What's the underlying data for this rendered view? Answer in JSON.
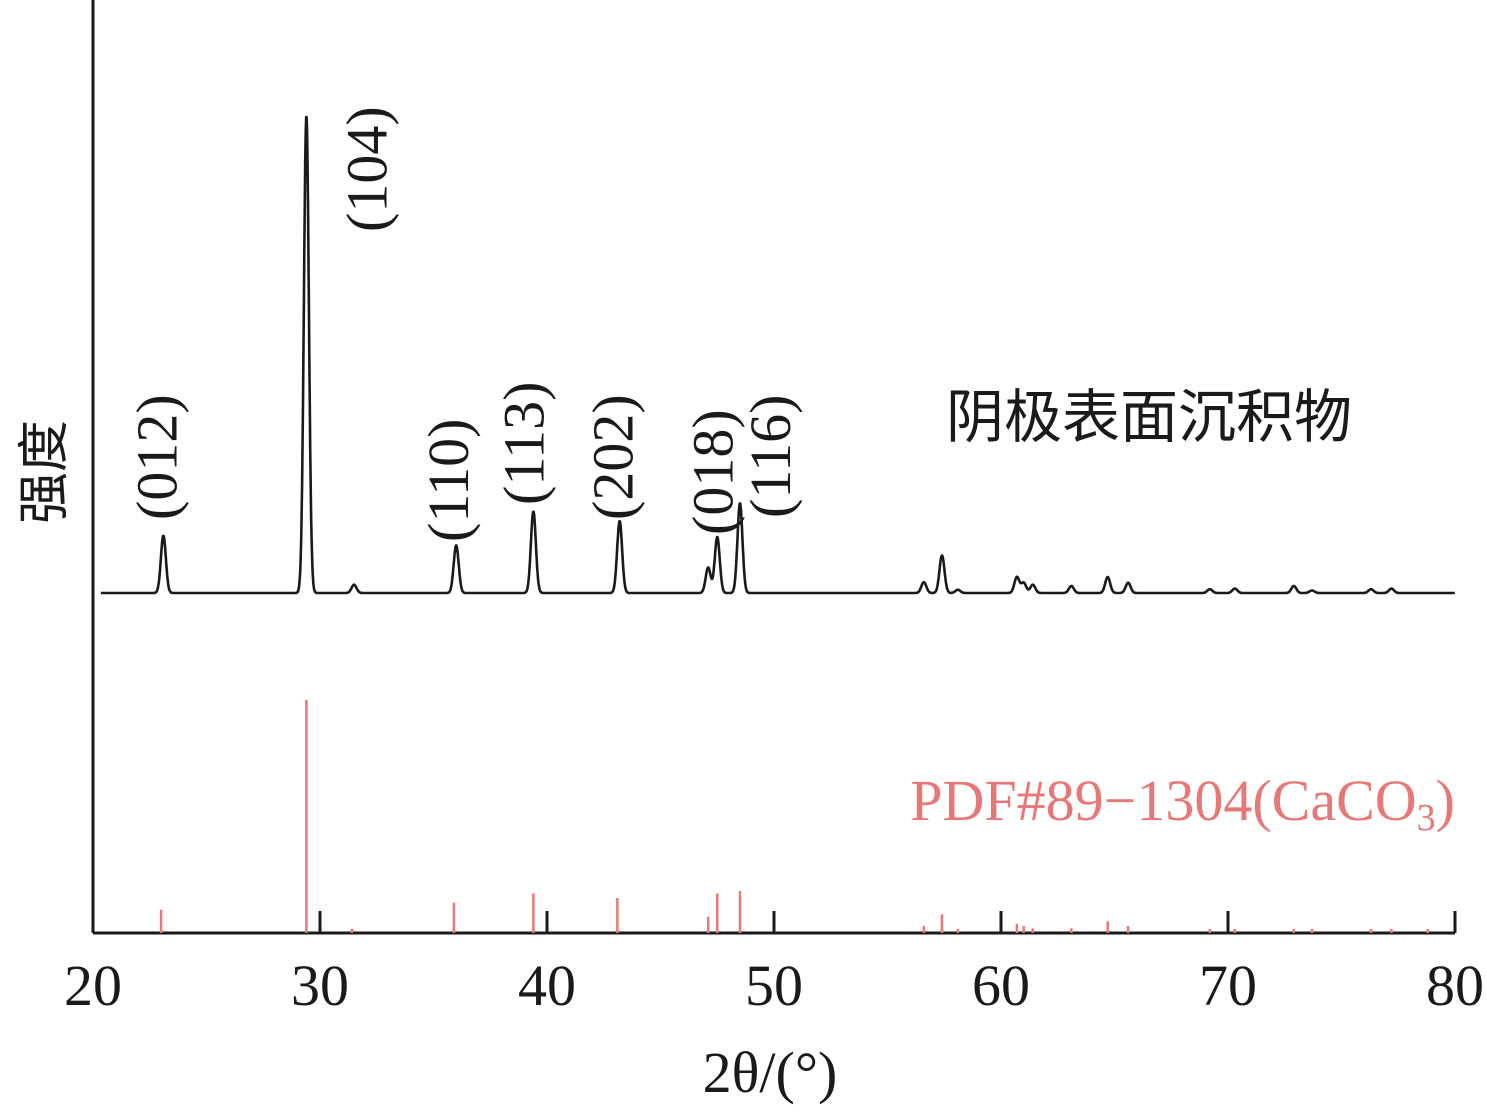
{
  "chart_data": {
    "type": "line",
    "xlabel": "2θ/(°)",
    "ylabel": "强度",
    "xlim": [
      20,
      80
    ],
    "x_ticks": [
      "20",
      "30",
      "40",
      "50",
      "60",
      "70",
      "80"
    ],
    "grid": false,
    "series": [
      {
        "name": "阴极表面沉积物",
        "color": "#1a1a1a",
        "baseline": 0,
        "peaks": [
          {
            "x": 23.1,
            "y": 9
          },
          {
            "x": 29.4,
            "y": 75
          },
          {
            "x": 31.5,
            "y": 1.3
          },
          {
            "x": 36.0,
            "y": 7.5
          },
          {
            "x": 39.4,
            "y": 12.8
          },
          {
            "x": 43.2,
            "y": 11.3
          },
          {
            "x": 47.1,
            "y": 4
          },
          {
            "x": 47.5,
            "y": 8.8
          },
          {
            "x": 48.5,
            "y": 14.1
          },
          {
            "x": 56.6,
            "y": 1.7
          },
          {
            "x": 57.4,
            "y": 5.9
          },
          {
            "x": 58.1,
            "y": 0.5
          },
          {
            "x": 60.7,
            "y": 2.5
          },
          {
            "x": 61.0,
            "y": 1.6
          },
          {
            "x": 61.4,
            "y": 1.3
          },
          {
            "x": 63.1,
            "y": 1.1
          },
          {
            "x": 64.7,
            "y": 2.5
          },
          {
            "x": 65.6,
            "y": 1.6
          },
          {
            "x": 69.2,
            "y": 0.6
          },
          {
            "x": 70.3,
            "y": 0.7
          },
          {
            "x": 72.9,
            "y": 1.1
          },
          {
            "x": 73.7,
            "y": 0.4
          },
          {
            "x": 76.3,
            "y": 0.6
          },
          {
            "x": 77.2,
            "y": 0.7
          }
        ]
      },
      {
        "name": "PDF#89−1304(CaCO3)",
        "type": "stick",
        "color": "#e87878",
        "x": [
          23.0,
          29.4,
          31.4,
          35.9,
          39.4,
          43.1,
          47.1,
          47.5,
          48.5,
          56.6,
          57.4,
          58.1,
          60.7,
          61.0,
          61.4,
          63.1,
          64.7,
          65.6,
          69.2,
          70.3,
          72.9,
          73.7,
          76.3,
          77.2,
          78.8
        ],
        "y": [
          100,
          100,
          100,
          100,
          100,
          100,
          100,
          100,
          100,
          100,
          100,
          100,
          100,
          100,
          100,
          100,
          100,
          100,
          100,
          100,
          100,
          100,
          100,
          100,
          100
        ],
        "values_relative": [
          10,
          100,
          1.5,
          13,
          17,
          15,
          7,
          17,
          18,
          3,
          8,
          1.5,
          4,
          3,
          2,
          2,
          5,
          3,
          1,
          1.5,
          1.5,
          1,
          1,
          1,
          1
        ]
      }
    ],
    "annotations": [
      {
        "text": "(012)",
        "x": 23.1
      },
      {
        "text": "(104)",
        "x": 29.4
      },
      {
        "text": "(110)",
        "x": 36.0
      },
      {
        "text": "(113)",
        "x": 39.4
      },
      {
        "text": "(202)",
        "x": 43.2
      },
      {
        "text": "(018)",
        "x": 47.5
      },
      {
        "text": "(116)",
        "x": 48.5
      }
    ],
    "sample_label": "阴极表面沉积物",
    "reference_label_main": "PDF#89−1304(CaCO",
    "reference_label_sub": "3",
    "reference_label_end": ")"
  }
}
